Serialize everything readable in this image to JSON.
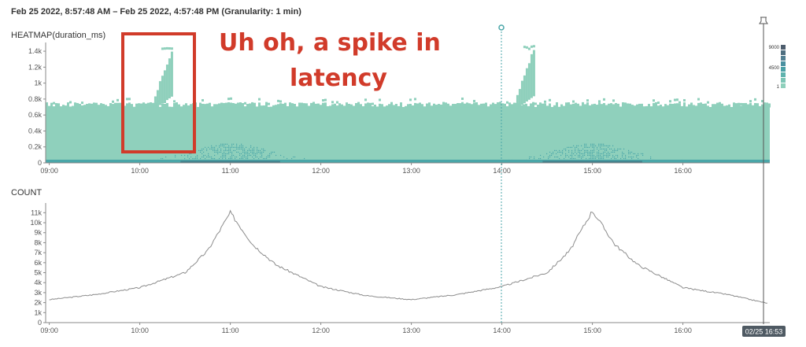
{
  "time_range": "Feb 25 2022, 8:57:48 AM – Feb 25 2022, 4:57:48 PM (Granularity: 1 min)",
  "annotation": {
    "line1": "Uh oh, a spike in",
    "line2": "latency"
  },
  "cursor_label": "02/25 16:53",
  "pin_icon": "pin-icon",
  "colors": {
    "heat_light": "#8fd0bc",
    "heat_mid": "#4aa6a8",
    "heat_dark": "#3a5f73",
    "line": "#8c8c8c",
    "annotation": "#d13b2a",
    "marker": "#4aa6a8"
  },
  "chart_data": [
    {
      "type": "heatmap",
      "title": "HEATMAP(duration_ms)",
      "x_ticks": [
        "09:00",
        "10:00",
        "11:00",
        "12:00",
        "13:00",
        "14:00",
        "15:00",
        "16:00"
      ],
      "y_ticks": [
        "0",
        "0.2k",
        "0.4k",
        "0.6k",
        "0.8k",
        "1k",
        "1.2k",
        "1.4k"
      ],
      "ylim": [
        0,
        1450
      ],
      "xlim_hours": [
        8.96,
        16.96
      ],
      "baseline_upper_ms": 700,
      "spikes": [
        {
          "start": "10:08",
          "end": "10:22",
          "peak_ms": 1380
        },
        {
          "start": "14:08",
          "end": "14:22",
          "peak_ms": 1400
        }
      ],
      "legend": {
        "labels": [
          "9000",
          "4500",
          "1"
        ]
      }
    },
    {
      "type": "line",
      "title": "COUNT",
      "x_ticks": [
        "09:00",
        "10:00",
        "11:00",
        "12:00",
        "13:00",
        "14:00",
        "15:00",
        "16:00"
      ],
      "y_ticks": [
        "0",
        "1k",
        "2k",
        "3k",
        "4k",
        "5k",
        "6k",
        "7k",
        "8k",
        "9k",
        "10k",
        "11k"
      ],
      "ylim": [
        0,
        11500
      ],
      "x": [
        "09:00",
        "09:30",
        "10:00",
        "10:30",
        "10:45",
        "11:00",
        "11:15",
        "11:30",
        "12:00",
        "12:30",
        "13:00",
        "13:30",
        "14:00",
        "14:30",
        "14:45",
        "15:00",
        "15:15",
        "15:30",
        "16:00",
        "16:30",
        "16:57"
      ],
      "values": [
        2300,
        2800,
        3500,
        5000,
        7200,
        11000,
        7800,
        5800,
        3600,
        2700,
        2300,
        2800,
        3600,
        5000,
        7200,
        11200,
        7800,
        5800,
        3500,
        2800,
        1900
      ]
    }
  ]
}
